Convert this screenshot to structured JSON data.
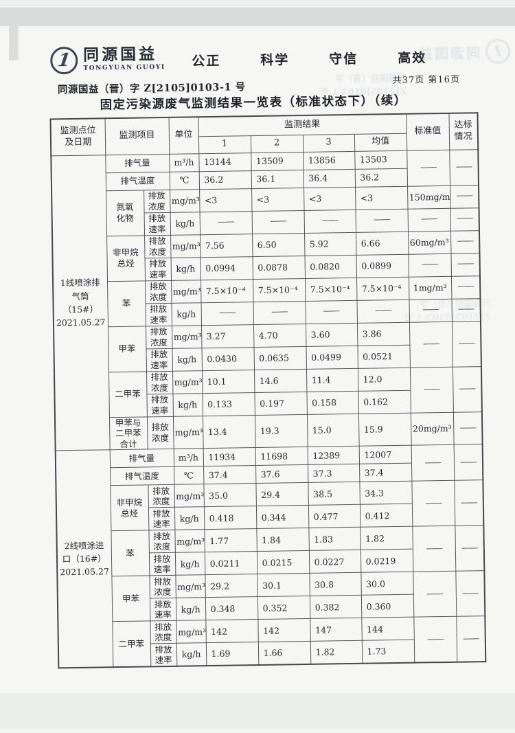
{
  "colors": {
    "ink": "#26272e",
    "table_border": "#54555b",
    "paper": "#f6f7f5"
  },
  "brand": {
    "logo_glyph": "1",
    "name_cn": "同源国益",
    "name_en": "TONGYUAN GUOYI",
    "slogan": [
      "公正",
      "科学",
      "守信",
      "高效"
    ]
  },
  "page": {
    "doc_number": "同源国益（晋）字 Z[2105]0103-1 号",
    "page_info": "共37页  第16页",
    "title": "固定污染源废气监测结果一览表（标准状态下）（续）"
  },
  "table": {
    "headers": {
      "point": "监测点位\n及日期",
      "item": "监测项目",
      "unit": "单位",
      "results": "监测结果",
      "result_cols": [
        "1",
        "2",
        "3",
        "均值"
      ],
      "standard": "标准值",
      "compliance": "达标\n情况"
    },
    "rows": [
      [
        {
          "t": "1线喷涂排\n气筒（15#）\n2021.05.27",
          "rs": 13
        },
        {
          "t": "排气量",
          "cs": 2
        },
        {
          "t": "m³/h"
        },
        {
          "t": "13144",
          "l": 1
        },
        {
          "t": "13509",
          "l": 1
        },
        {
          "t": "13856",
          "l": 1
        },
        {
          "t": "13503",
          "l": 1
        },
        {
          "t": "——",
          "rs": 2
        },
        {
          "t": "——",
          "rs": 2
        }
      ],
      [
        {
          "t": "排气温度",
          "cs": 2
        },
        {
          "t": "℃"
        },
        {
          "t": "36.2",
          "l": 1
        },
        {
          "t": "36.1",
          "l": 1
        },
        {
          "t": "36.4",
          "l": 1
        },
        {
          "t": "36.2",
          "l": 1
        }
      ],
      [
        {
          "t": "氮氧\n化物",
          "rs": 2
        },
        {
          "t": "排放\n浓度"
        },
        {
          "t": "mg/m³"
        },
        {
          "t": "<3",
          "l": 1
        },
        {
          "t": "<3",
          "l": 1
        },
        {
          "t": "<3",
          "l": 1
        },
        {
          "t": "<3",
          "l": 1
        },
        {
          "t": "150mg/m³"
        },
        {
          "t": "——"
        }
      ],
      [
        {
          "t": "排放\n速率"
        },
        {
          "t": "kg/h"
        },
        {
          "t": "——"
        },
        {
          "t": "——"
        },
        {
          "t": "——"
        },
        {
          "t": "——"
        },
        {
          "t": "——"
        },
        {
          "t": "——"
        }
      ],
      [
        {
          "t": "非甲烷\n总烃",
          "rs": 2
        },
        {
          "t": "排放\n浓度"
        },
        {
          "t": "mg/m³"
        },
        {
          "t": "7.56",
          "l": 1
        },
        {
          "t": "6.50",
          "l": 1
        },
        {
          "t": "5.92",
          "l": 1
        },
        {
          "t": "6.66",
          "l": 1
        },
        {
          "t": "60mg/m³"
        },
        {
          "t": "——"
        }
      ],
      [
        {
          "t": "排放\n速率"
        },
        {
          "t": "kg/h"
        },
        {
          "t": "0.0994",
          "l": 1
        },
        {
          "t": "0.0878",
          "l": 1
        },
        {
          "t": "0.0820",
          "l": 1
        },
        {
          "t": "0.0899",
          "l": 1
        },
        {
          "t": "——"
        },
        {
          "t": "——"
        }
      ],
      [
        {
          "t": "苯",
          "rs": 2
        },
        {
          "t": "排放\n浓度"
        },
        {
          "t": "mg/m³"
        },
        {
          "t": "7.5×10⁻⁴",
          "l": 1
        },
        {
          "t": "7.5×10⁻⁴",
          "l": 1
        },
        {
          "t": "7.5×10⁻⁴",
          "l": 1
        },
        {
          "t": "7.5×10⁻⁴",
          "l": 1
        },
        {
          "t": "1mg/m³"
        },
        {
          "t": "——"
        }
      ],
      [
        {
          "t": "排放\n速率"
        },
        {
          "t": "kg/h"
        },
        {
          "t": "——"
        },
        {
          "t": "——"
        },
        {
          "t": "——"
        },
        {
          "t": "——"
        },
        {
          "t": "——"
        },
        {
          "t": "——"
        }
      ],
      [
        {
          "t": "甲苯",
          "rs": 2
        },
        {
          "t": "排放\n浓度"
        },
        {
          "t": "mg/m³"
        },
        {
          "t": "3.27",
          "l": 1
        },
        {
          "t": "4.70",
          "l": 1
        },
        {
          "t": "3.60",
          "l": 1
        },
        {
          "t": "3.86",
          "l": 1
        },
        {
          "t": "——",
          "rs": 2
        },
        {
          "t": "——",
          "rs": 2
        }
      ],
      [
        {
          "t": "排放\n速率"
        },
        {
          "t": "kg/h"
        },
        {
          "t": "0.0430",
          "l": 1
        },
        {
          "t": "0.0635",
          "l": 1
        },
        {
          "t": "0.0499",
          "l": 1
        },
        {
          "t": "0.0521",
          "l": 1
        }
      ],
      [
        {
          "t": "二甲苯",
          "rs": 2
        },
        {
          "t": "排放\n浓度"
        },
        {
          "t": "mg/m³"
        },
        {
          "t": "10.1",
          "l": 1
        },
        {
          "t": "14.6",
          "l": 1
        },
        {
          "t": "11.4",
          "l": 1
        },
        {
          "t": "12.0",
          "l": 1
        },
        {
          "t": "——",
          "rs": 2
        },
        {
          "t": "——",
          "rs": 2
        }
      ],
      [
        {
          "t": "排放\n速率"
        },
        {
          "t": "kg/h"
        },
        {
          "t": "0.133",
          "l": 1
        },
        {
          "t": "0.197",
          "l": 1
        },
        {
          "t": "0.158",
          "l": 1
        },
        {
          "t": "0.162",
          "l": 1
        }
      ],
      [
        {
          "t": "甲苯与\n二甲苯\n合计"
        },
        {
          "t": "排放\n浓度"
        },
        {
          "t": "mg/m³"
        },
        {
          "t": "13.4",
          "l": 1
        },
        {
          "t": "19.3",
          "l": 1
        },
        {
          "t": "15.0",
          "l": 1
        },
        {
          "t": "15.9",
          "l": 1
        },
        {
          "t": "20mg/m³"
        },
        {
          "t": "——"
        }
      ],
      [
        {
          "t": "2线喷涂进\n口（16#）\n2021.05.27",
          "rs": 12
        },
        {
          "t": "排气量",
          "cs": 2
        },
        {
          "t": "m³/h"
        },
        {
          "t": "11934",
          "l": 1
        },
        {
          "t": "11698",
          "l": 1
        },
        {
          "t": "12389",
          "l": 1
        },
        {
          "t": "12007",
          "l": 1
        },
        {
          "t": "——",
          "rs": 2
        },
        {
          "t": "——",
          "rs": 2
        }
      ],
      [
        {
          "t": "排气温度",
          "cs": 2
        },
        {
          "t": "℃"
        },
        {
          "t": "37.4",
          "l": 1
        },
        {
          "t": "37.6",
          "l": 1
        },
        {
          "t": "37.3",
          "l": 1
        },
        {
          "t": "37.4",
          "l": 1
        }
      ],
      [
        {
          "t": "非甲烷\n总烃",
          "rs": 2
        },
        {
          "t": "排放\n浓度"
        },
        {
          "t": "mg/m³"
        },
        {
          "t": "35.0",
          "l": 1
        },
        {
          "t": "29.4",
          "l": 1
        },
        {
          "t": "38.5",
          "l": 1
        },
        {
          "t": "34.3",
          "l": 1
        },
        {
          "t": "——",
          "rs": 2
        },
        {
          "t": "——",
          "rs": 2
        }
      ],
      [
        {
          "t": "排放\n速率"
        },
        {
          "t": "kg/h"
        },
        {
          "t": "0.418",
          "l": 1
        },
        {
          "t": "0.344",
          "l": 1
        },
        {
          "t": "0.477",
          "l": 1
        },
        {
          "t": "0.412",
          "l": 1
        }
      ],
      [
        {
          "t": "苯",
          "rs": 2
        },
        {
          "t": "排放\n浓度"
        },
        {
          "t": "mg/m³"
        },
        {
          "t": "1.77",
          "l": 1
        },
        {
          "t": "1.84",
          "l": 1
        },
        {
          "t": "1.83",
          "l": 1
        },
        {
          "t": "1.82",
          "l": 1
        },
        {
          "t": "——",
          "rs": 2
        },
        {
          "t": "——",
          "rs": 2
        }
      ],
      [
        {
          "t": "排放\n速率"
        },
        {
          "t": "kg/h"
        },
        {
          "t": "0.0211",
          "l": 1
        },
        {
          "t": "0.0215",
          "l": 1
        },
        {
          "t": "0.0227",
          "l": 1
        },
        {
          "t": "0.0219",
          "l": 1
        }
      ],
      [
        {
          "t": "甲苯",
          "rs": 2
        },
        {
          "t": "排放\n浓度"
        },
        {
          "t": "mg/m³"
        },
        {
          "t": "29.2",
          "l": 1
        },
        {
          "t": "30.1",
          "l": 1
        },
        {
          "t": "30.8",
          "l": 1
        },
        {
          "t": "30.0",
          "l": 1
        },
        {
          "t": "——",
          "rs": 2
        },
        {
          "t": "——",
          "rs": 2
        }
      ],
      [
        {
          "t": "排放\n速率"
        },
        {
          "t": "kg/h"
        },
        {
          "t": "0.348",
          "l": 1
        },
        {
          "t": "0.352",
          "l": 1
        },
        {
          "t": "0.382",
          "l": 1
        },
        {
          "t": "0.360",
          "l": 1
        }
      ],
      [
        {
          "t": "二甲苯",
          "rs": 2
        },
        {
          "t": "排放\n浓度"
        },
        {
          "t": "mg/m³"
        },
        {
          "t": "142",
          "l": 1
        },
        {
          "t": "142",
          "l": 1
        },
        {
          "t": "147",
          "l": 1
        },
        {
          "t": "144",
          "l": 1
        },
        {
          "t": "——",
          "rs": 2
        },
        {
          "t": "——",
          "rs": 2
        }
      ],
      [
        {
          "t": "排放\n速率"
        },
        {
          "t": "kg/h"
        },
        {
          "t": "1.69",
          "l": 1
        },
        {
          "t": "1.66",
          "l": 1
        },
        {
          "t": "1.82",
          "l": 1
        },
        {
          "t": "1.73",
          "l": 1
        }
      ]
    ]
  }
}
